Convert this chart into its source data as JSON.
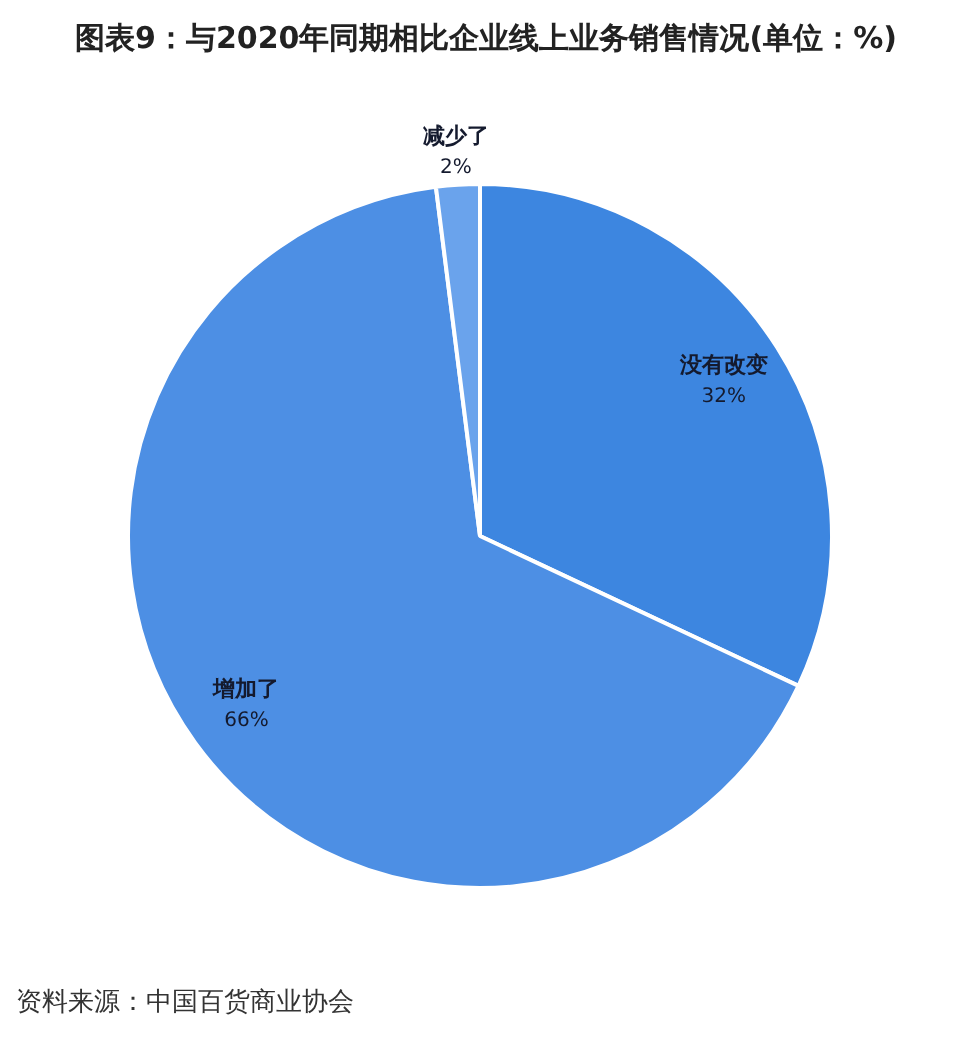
{
  "chart_data": {
    "type": "pie",
    "title": "图表9：与2020年同期相比企业线上业务销售情况(单位：%)",
    "categories": [
      "没有改变",
      "增加了",
      "减少了"
    ],
    "values": [
      32,
      66,
      2
    ],
    "colors": [
      "#3d86e0",
      "#4d8fe4",
      "#6aa3ec"
    ],
    "value_labels": [
      "32%",
      "66%",
      "2%"
    ],
    "annotations": [
      "资料来源：中国百货商业协会"
    ]
  }
}
